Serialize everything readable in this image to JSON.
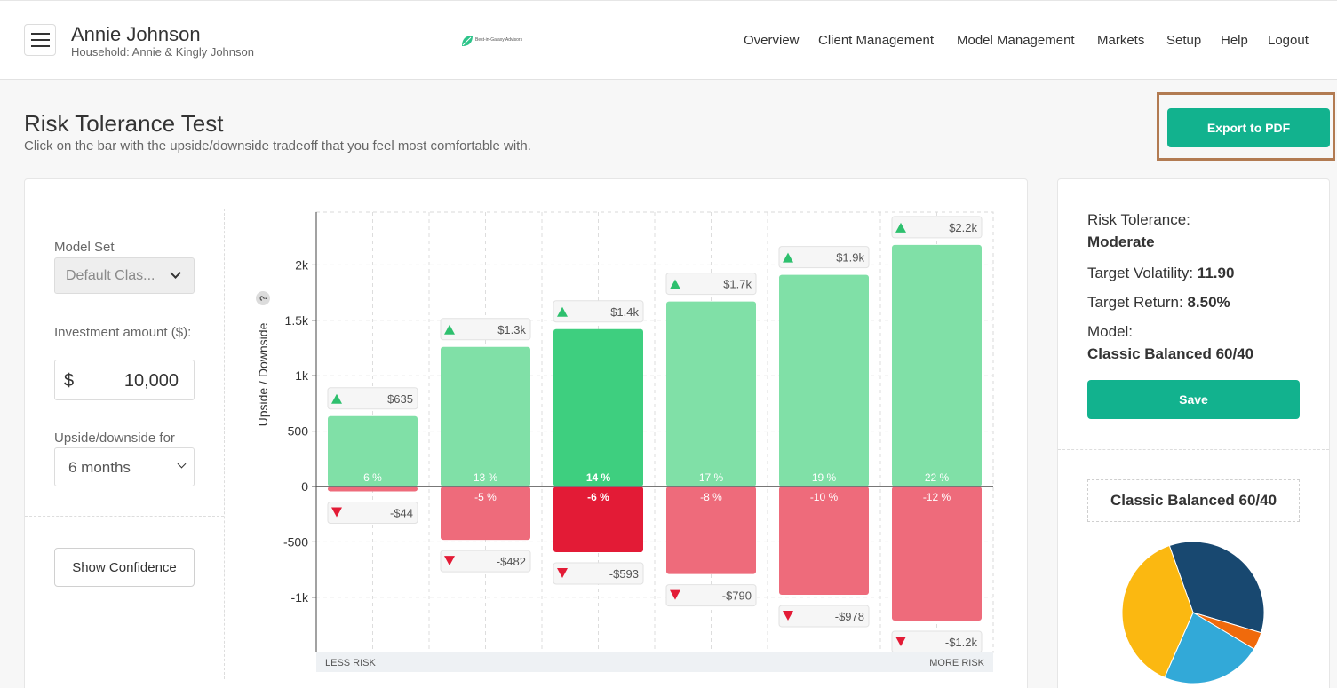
{
  "header": {
    "user_name": "Annie Johnson",
    "household": "Household: Annie & Kingly Johnson",
    "logo_text": "Best-in-Galaxy Advisors",
    "nav": [
      "Overview",
      "Client Management",
      "Model Management",
      "Markets",
      "Setup",
      "Help",
      "Logout"
    ]
  },
  "page": {
    "title": "Risk Tolerance Test",
    "subtitle": "Click on the bar with the upside/downside tradeoff that you feel most comfortable with.",
    "export_label": "Export to PDF"
  },
  "controls": {
    "model_set_label": "Model Set",
    "model_set_value": "Default Clas...",
    "investment_label": "Investment amount ($):",
    "currency_symbol": "$",
    "investment_value": "10,000",
    "period_label": "Upside/downside for",
    "period_value": "6 months",
    "show_confidence_label": "Show Confidence"
  },
  "summary": {
    "risk_tolerance_label": "Risk Tolerance:",
    "risk_tolerance_value": "Moderate",
    "volatility_label": "Target Volatility:",
    "volatility_value": "11.90",
    "return_label": "Target Return:",
    "return_value": "8.50%",
    "model_label": "Model:",
    "model_value": "Classic Balanced 60/40",
    "save_label": "Save",
    "pie_title": "Classic Balanced 60/40"
  },
  "colors": {
    "accent": "#12b28e",
    "up_bar": "#80e0a7",
    "up_bar_selected": "#3ecf7f",
    "down_bar": "#ee6b7b",
    "down_bar_selected": "#e31b36",
    "up_arrow": "#2ec06e",
    "down_arrow": "#e31b36"
  },
  "chart_data": [
    {
      "type": "bar",
      "ylabel": "Upside / Downside",
      "ylim": [
        -1500,
        2400
      ],
      "yticks": [
        -1000,
        -500,
        0,
        500,
        1000,
        1500,
        2000
      ],
      "ytick_labels": [
        "-1k",
        "-500",
        "0",
        "500",
        "1k",
        "1.5k",
        "2k"
      ],
      "x_left_label": "LESS RISK",
      "x_right_label": "MORE RISK",
      "help_icon": "?",
      "selected_index": 2,
      "bars": [
        {
          "upside": 635,
          "downside": -44,
          "up_label": "$635",
          "down_label": "-$44",
          "up_pct": "6 %",
          "down_pct": ""
        },
        {
          "upside": 1260,
          "downside": -482,
          "up_label": "$1.3k",
          "down_label": "-$482",
          "up_pct": "13 %",
          "down_pct": "-5 %"
        },
        {
          "upside": 1420,
          "downside": -593,
          "up_label": "$1.4k",
          "down_label": "-$593",
          "up_pct": "14 %",
          "down_pct": "-6 %"
        },
        {
          "upside": 1670,
          "downside": -790,
          "up_label": "$1.7k",
          "down_label": "-$790",
          "up_pct": "17 %",
          "down_pct": "-8 %"
        },
        {
          "upside": 1910,
          "downside": -978,
          "up_label": "$1.9k",
          "down_label": "-$978",
          "up_pct": "19 %",
          "down_pct": "-10 %"
        },
        {
          "upside": 2180,
          "downside": -1210,
          "up_label": "$2.2k",
          "down_label": "-$1.2k",
          "up_pct": "22 %",
          "down_pct": "-12 %"
        }
      ]
    },
    {
      "type": "pie",
      "title": "Classic Balanced 60/40",
      "slices": [
        {
          "name": "Navy segment",
          "value": 35,
          "color": "#184870"
        },
        {
          "name": "Orange segment",
          "value": 4,
          "color": "#f06a0c"
        },
        {
          "name": "Blue segment",
          "value": 23,
          "color": "#32a9d8"
        },
        {
          "name": "Yellow segment",
          "value": 38,
          "color": "#fbb811"
        }
      ]
    }
  ]
}
